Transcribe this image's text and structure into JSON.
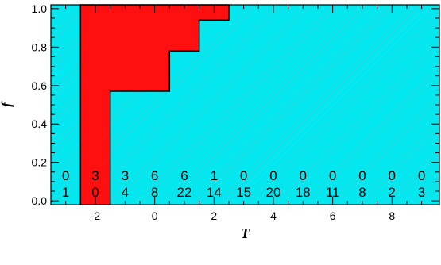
{
  "chart_data": {
    "type": "area",
    "title": "",
    "xlabel": "T",
    "ylabel": "f",
    "xlim": [
      -3.5,
      9.6
    ],
    "ylim": [
      -0.02,
      1.02
    ],
    "x_ticks": [
      -2,
      0,
      2,
      4,
      6,
      8
    ],
    "x_tick_labels": [
      "-2",
      "0",
      "2",
      "4",
      "6",
      "8"
    ],
    "y_ticks": [
      0.0,
      0.2,
      0.4,
      0.6,
      0.8,
      1.0
    ],
    "y_tick_labels": [
      "0.0",
      "0.2",
      "0.4",
      "0.6",
      "0.8",
      "1.0"
    ],
    "background_color": "#00e8f0",
    "hatch_color": "#48d0d8",
    "fill_color": "#ff1010",
    "red_region": {
      "x": [
        -2.5,
        -1.5,
        0.5,
        1.5,
        2.5
      ],
      "y_bottom": [
        -0.02,
        0.57,
        0.78,
        0.94,
        1.02
      ]
    },
    "bin_centers": [
      -3,
      -2,
      -1,
      0,
      1,
      2,
      3,
      4,
      5,
      6,
      7,
      8,
      9
    ],
    "counts_top": [
      "0",
      "3",
      "3",
      "6",
      "6",
      "1",
      "0",
      "0",
      "0",
      "0",
      "0",
      "0",
      "0"
    ],
    "counts_bottom": [
      "1",
      "0",
      "4",
      "8",
      "22",
      "14",
      "15",
      "20",
      "18",
      "11",
      "8",
      "2",
      "3"
    ]
  }
}
